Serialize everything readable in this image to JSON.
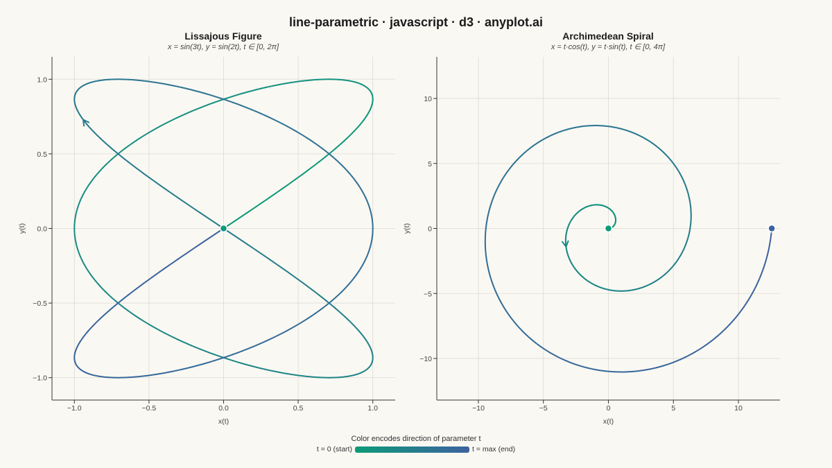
{
  "title": "line-parametric · javascript · d3 · anyplot.ai",
  "colors": {
    "start": "#0d9a78",
    "end": "#3d62a0",
    "background": "#faf8f3",
    "grid": "#dcdad4"
  },
  "legend": {
    "title": "Color encodes direction of parameter t",
    "start_label": "t = 0 (start)",
    "end_label": "t = max (end)"
  },
  "chart_data": [
    {
      "type": "line",
      "title": "Lissajous Figure",
      "subtitle": "x = sin(3t), y = sin(2t), t ∈ [0, 2π]",
      "xlabel": "x(t)",
      "ylabel": "y(t)",
      "xlim": [
        -1.15,
        1.15
      ],
      "ylim": [
        -1.15,
        1.15
      ],
      "xticks": [
        -1.0,
        -0.5,
        0.0,
        0.5,
        1.0
      ],
      "xtick_labels": [
        "−1.0",
        "−0.5",
        "0.0",
        "0.5",
        "1.0"
      ],
      "yticks": [
        -1.0,
        -0.5,
        0.0,
        0.5,
        1.0
      ],
      "ytick_labels": [
        "−1.0",
        "−0.5",
        "0.0",
        "0.5",
        "1.0"
      ],
      "grid": true,
      "parametric": {
        "x": "sin(3t)",
        "y": "sin(2t)",
        "t_range": [
          0,
          6.283185307
        ]
      },
      "start_marker": [
        0.0,
        0.0
      ],
      "direction_arrow_t": 3.55
    },
    {
      "type": "line",
      "title": "Archimedean Spiral",
      "subtitle": "x = t·cos(t), y = t·sin(t), t ∈ [0, 4π]",
      "xlabel": "x(t)",
      "ylabel": "y(t)",
      "xlim": [
        -13.2,
        13.2
      ],
      "ylim": [
        -13.2,
        13.2
      ],
      "xticks": [
        -10,
        -5,
        0,
        5,
        10
      ],
      "xtick_labels": [
        "−10",
        "−5",
        "0",
        "5",
        "10"
      ],
      "yticks": [
        -10,
        -5,
        0,
        5,
        10
      ],
      "ytick_labels": [
        "−10",
        "−5",
        "0",
        "5",
        "10"
      ],
      "grid": true,
      "parametric": {
        "x": "t*cos(t)",
        "y": "t*sin(t)",
        "t_range": [
          0,
          12.566370614
        ]
      },
      "start_marker": [
        0.0,
        0.0
      ],
      "end_marker": [
        12.566,
        0.0
      ],
      "direction_arrow_t": 3.55
    }
  ]
}
